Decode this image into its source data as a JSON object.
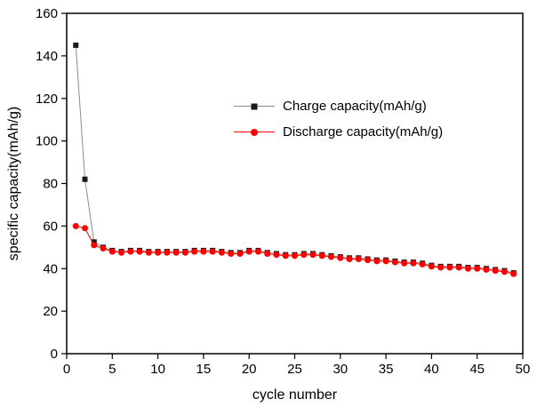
{
  "chart_data": {
    "type": "line",
    "title": "",
    "xlabel": "cycle number",
    "ylabel": "specific capacity(mAh/g)",
    "xlim": [
      0,
      50
    ],
    "ylim": [
      0,
      160
    ],
    "xticks": [
      0,
      5,
      10,
      15,
      20,
      25,
      30,
      35,
      40,
      45,
      50
    ],
    "yticks": [
      0,
      20,
      40,
      60,
      80,
      100,
      120,
      140,
      160
    ],
    "grid": false,
    "legend_position": "upper-center-inside",
    "axis_color": "#000000",
    "background_color": "#ffffff",
    "x": [
      1,
      2,
      3,
      4,
      5,
      6,
      7,
      8,
      9,
      10,
      11,
      12,
      13,
      14,
      15,
      16,
      17,
      18,
      19,
      20,
      21,
      22,
      23,
      24,
      25,
      26,
      27,
      28,
      29,
      30,
      31,
      32,
      33,
      34,
      35,
      36,
      37,
      38,
      39,
      40,
      41,
      42,
      43,
      44,
      45,
      46,
      47,
      48,
      49
    ],
    "series": [
      {
        "name": "Charge capacity(mAh/g)",
        "marker": "square",
        "color": "#1a1a1a",
        "line_color": "#8c8c8c",
        "values": [
          145,
          82,
          52.5,
          50,
          48.5,
          48,
          48.5,
          48.5,
          48,
          48,
          48,
          48,
          48,
          48.5,
          48.5,
          48.5,
          48,
          47.5,
          47.5,
          48.5,
          48.5,
          47.5,
          47,
          46.5,
          46.5,
          47,
          47,
          46.5,
          46,
          45.5,
          45,
          45,
          44.5,
          44,
          44,
          43.5,
          43,
          43,
          42.5,
          41.5,
          41,
          41,
          41,
          40.5,
          40.5,
          40,
          39.5,
          39,
          38
        ]
      },
      {
        "name": "Discharge capacity(mAh/g)",
        "marker": "circle",
        "color": "#ff0000",
        "line_color": "#ff0000",
        "values": [
          60,
          59,
          51,
          49.5,
          48,
          47.5,
          48,
          48,
          47.5,
          47.5,
          47.5,
          47.5,
          47.5,
          48,
          48,
          48,
          47.5,
          47,
          47,
          48,
          48,
          47,
          46.5,
          46,
          46,
          46.5,
          46.5,
          46,
          45.5,
          45,
          44.5,
          44.5,
          44,
          43.5,
          43.5,
          43,
          42.5,
          42.5,
          42,
          41,
          40.5,
          40.5,
          40.5,
          40,
          40,
          39.5,
          39,
          38.5,
          37.5
        ]
      }
    ]
  }
}
